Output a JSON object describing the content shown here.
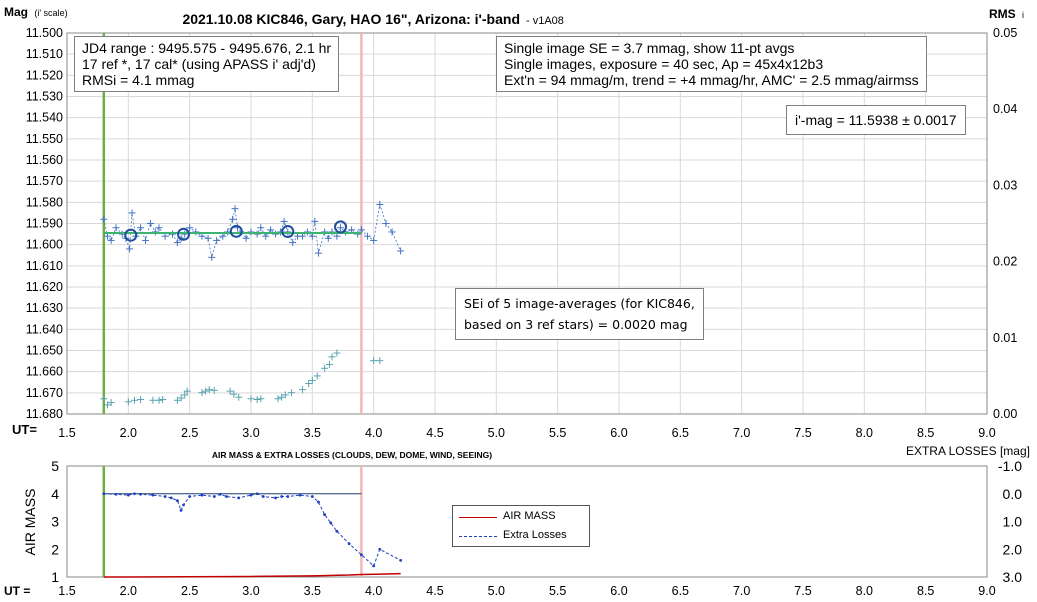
{
  "chart_data": [
    {
      "type": "scatter",
      "title": "2021.10.08 KIC846, Gary, HAO 16\", Arizona: i'-band",
      "title_suffix": "- v1A08",
      "ylabel_main": "Mag",
      "ylabel_sub": "(i' scale)",
      "y2label_main": "RMS",
      "y2label_sub": "i",
      "xlabel": "UT=",
      "xlim": [
        1.5,
        9.0
      ],
      "ylim": [
        11.68,
        11.5
      ],
      "y2lim": [
        0.0,
        0.05
      ],
      "grid": true,
      "x_ticks": [
        "1.5",
        "2.0",
        "2.5",
        "3.0",
        "3.5",
        "4.0",
        "4.5",
        "5.0",
        "5.5",
        "6.0",
        "6.5",
        "7.0",
        "7.5",
        "8.0",
        "8.5",
        "9.0"
      ],
      "y_ticks": [
        "11.500",
        "11.510",
        "11.520",
        "11.530",
        "11.540",
        "11.550",
        "11.560",
        "11.570",
        "11.580",
        "11.590",
        "11.600",
        "11.610",
        "11.620",
        "11.630",
        "11.640",
        "11.650",
        "11.660",
        "11.670",
        "11.680"
      ],
      "y2_ticks": [
        "0.05",
        "0.04",
        "0.03",
        "0.02",
        "0.01",
        "0.00"
      ],
      "series": [
        {
          "x": [
            1.8,
            1.83,
            1.86,
            1.9,
            1.95,
            1.98,
            2.01,
            2.03,
            2.06,
            2.1,
            2.14,
            2.18,
            2.22,
            2.25,
            2.3,
            2.36,
            2.4,
            2.43,
            2.46,
            2.5,
            2.55,
            2.6,
            2.65,
            2.68,
            2.72,
            2.77,
            2.81,
            2.85,
            2.87,
            2.89,
            2.92,
            2.96,
            3.0,
            3.05,
            3.08,
            3.12,
            3.16,
            3.2,
            3.24,
            3.27,
            3.3,
            3.34,
            3.38,
            3.42,
            3.46,
            3.5,
            3.52,
            3.55,
            3.6,
            3.63,
            3.66,
            3.7,
            3.73,
            3.77,
            3.82,
            3.87,
            3.9,
            3.95,
            4.0,
            4.05,
            4.1,
            4.15,
            4.22
          ],
          "y": [
            11.588,
            11.596,
            11.598,
            11.592,
            11.595,
            11.597,
            11.602,
            11.585,
            11.596,
            11.592,
            11.598,
            11.59,
            11.594,
            11.592,
            11.596,
            11.595,
            11.599,
            11.597,
            11.595,
            11.592,
            11.594,
            11.596,
            11.597,
            11.606,
            11.598,
            11.596,
            11.594,
            11.588,
            11.583,
            11.592,
            11.594,
            11.597,
            11.594,
            11.595,
            11.592,
            11.596,
            11.593,
            11.595,
            11.594,
            11.589,
            11.594,
            11.599,
            11.596,
            11.596,
            11.594,
            11.596,
            11.589,
            11.604,
            11.594,
            11.597,
            11.594,
            11.596,
            11.592,
            11.594,
            11.593,
            11.595,
            11.593,
            11.596,
            11.598,
            11.581,
            11.59,
            11.594,
            11.603
          ],
          "color": "#4472c4"
        },
        {
          "x": [
            2.02,
            2.45,
            2.88,
            3.3,
            3.73
          ],
          "y": [
            11.5955,
            11.5951,
            11.5937,
            11.5938,
            11.5916
          ],
          "color": "#1f4e9f"
        },
        {
          "x": [
            1.8,
            3.9
          ],
          "y": [
            11.5945,
            11.5945
          ],
          "color": "#3cb371"
        },
        {
          "x": [
            1.8,
            1.83,
            1.86,
            2.0,
            2.05,
            2.1,
            2.2,
            2.25,
            2.28,
            2.4,
            2.43,
            2.46,
            2.48,
            2.6,
            2.63,
            2.66,
            2.7,
            2.83,
            2.86,
            2.9,
            3.0,
            3.05,
            3.08,
            3.22,
            3.25,
            3.28,
            3.33,
            3.42,
            3.47,
            3.5,
            3.54,
            3.6,
            3.64,
            3.66,
            3.7,
            4.0,
            4.05
          ],
          "y2": [
            0.002,
            0.0012,
            0.0015,
            0.0016,
            0.0018,
            0.0019,
            0.0018,
            0.0018,
            0.0019,
            0.0018,
            0.0021,
            0.0025,
            0.003,
            0.0028,
            0.003,
            0.0032,
            0.0031,
            0.003,
            0.0026,
            0.0022,
            0.002,
            0.0019,
            0.002,
            0.002,
            0.0022,
            0.0025,
            0.0028,
            0.0032,
            0.004,
            0.0044,
            0.005,
            0.006,
            0.0065,
            0.0075,
            0.008,
            0.007,
            0.007
          ],
          "color": "#5ba3b0"
        }
      ],
      "markers": [
        {
          "x": 1.8,
          "color": "#70ad47"
        },
        {
          "x": 3.9,
          "color": "#f4b6b6"
        }
      ]
    },
    {
      "type": "line",
      "title": "AIR MASS & EXTRA LOSSES (CLOUDS, DEW, DOME, WIND, SEEING)",
      "ylabel": "AIR MASS",
      "y2label": "EXTRA LOSSES [mag]",
      "xlabel": "UT =",
      "xlim": [
        1.5,
        9.0
      ],
      "ylim": [
        1,
        5
      ],
      "y2lim": [
        -1.0,
        3.0
      ],
      "x_ticks": [
        "1.5",
        "2.0",
        "2.5",
        "3.0",
        "3.5",
        "4.0",
        "4.5",
        "5.0",
        "5.5",
        "6.0",
        "6.5",
        "7.0",
        "7.5",
        "8.0",
        "8.5",
        "9.0"
      ],
      "y_ticks": [
        "1",
        "2",
        "3",
        "4",
        "5"
      ],
      "y2_ticks": [
        "-1.0",
        "0.0",
        "1.0",
        "2.0",
        "3.0"
      ],
      "series": [
        {
          "name": "AIR MASS",
          "x": [
            1.8,
            2.0,
            2.5,
            3.0,
            3.5,
            3.8,
            3.9,
            4.22
          ],
          "y": [
            1.0,
            1.0,
            1.01,
            1.02,
            1.04,
            1.07,
            1.09,
            1.12
          ],
          "color": "#c00000"
        },
        {
          "name": "Extra Losses",
          "x": [
            1.8,
            1.9,
            2.0,
            2.05,
            2.1,
            2.2,
            2.3,
            2.35,
            2.4,
            2.43,
            2.45,
            2.5,
            2.6,
            2.7,
            2.75,
            2.8,
            2.9,
            3.0,
            3.05,
            3.1,
            3.2,
            3.25,
            3.3,
            3.4,
            3.5,
            3.55,
            3.6,
            3.65,
            3.7,
            3.8,
            3.9,
            4.0,
            4.05,
            4.22
          ],
          "y2": [
            0.0,
            0.02,
            0.05,
            0.0,
            0.02,
            0.05,
            0.1,
            0.15,
            0.25,
            0.6,
            0.4,
            0.1,
            0.05,
            0.1,
            0.02,
            0.1,
            0.15,
            0.05,
            0.0,
            0.1,
            0.15,
            0.1,
            0.1,
            0.05,
            0.1,
            0.3,
            0.75,
            1.05,
            1.35,
            1.8,
            2.2,
            2.6,
            2.0,
            2.4
          ],
          "color": "#1f3fbf"
        },
        {
          "x": [
            1.8,
            3.9
          ],
          "y2": [
            0.0,
            0.0
          ],
          "color": "#1f3f6f"
        }
      ],
      "markers": [
        {
          "x": 1.8,
          "color": "#70ad47"
        },
        {
          "x": 3.9,
          "color": "#f4b6b6"
        }
      ]
    }
  ],
  "annotations": {
    "jd_box": [
      "JD4 range : 9495.575 - 9495.676, 2.1  hr",
      "17 ref *, 17 cal* (using APASS i' adj'd)",
      "RMSi = 4.1 mmag"
    ],
    "se_box": [
      "Single image SE = 3.7 mmag, show 11-pt avgs",
      "Single images, exposure = 40 sec, Ap = 45x4x12b3",
      "Ext'n = 94 mmag/m, trend = +4 mmag/hr, AMC' = 2.5 mmag/airmss"
    ],
    "imag_box": "i'-mag = 11.5938 ± 0.0017",
    "sei_box": [
      "SEi of 5 image-averages (for KIC846,",
      "based on 3 ref stars) = 0.0020 mag"
    ]
  }
}
